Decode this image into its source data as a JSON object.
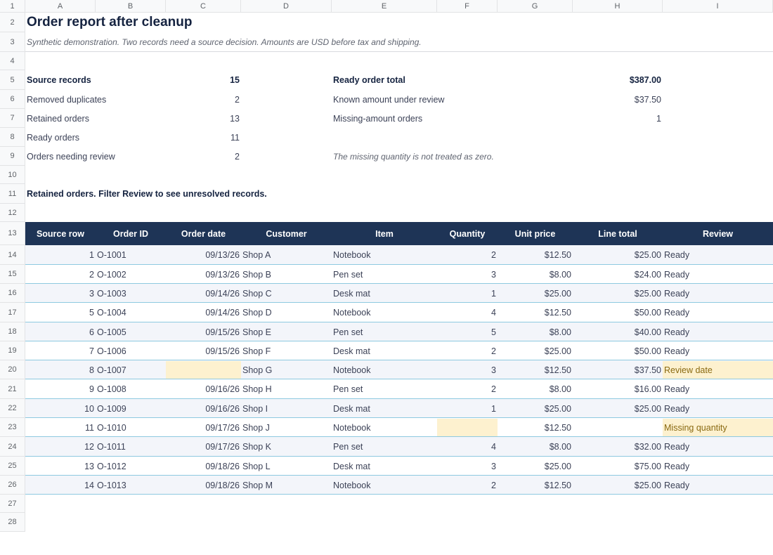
{
  "columns": [
    "A",
    "B",
    "C",
    "D",
    "E",
    "F",
    "G",
    "H",
    "I"
  ],
  "rows": [
    "1",
    "2",
    "3",
    "4",
    "5",
    "6",
    "7",
    "8",
    "9",
    "10",
    "11",
    "12",
    "13",
    "14",
    "15",
    "16",
    "17",
    "18",
    "19",
    "20",
    "21",
    "22",
    "23",
    "24",
    "25",
    "26",
    "27",
    "28"
  ],
  "title": "Order report after cleanup",
  "subtitle": "Synthetic demonstration. Two records need a source decision. Amounts are USD before tax and shipping.",
  "summary_left": [
    {
      "label": "Source records",
      "value": "15",
      "bold": true
    },
    {
      "label": "Removed duplicates",
      "value": "2",
      "bold": false
    },
    {
      "label": "Retained orders",
      "value": "13",
      "bold": false
    },
    {
      "label": "Ready orders",
      "value": "11",
      "bold": false
    },
    {
      "label": "Orders needing review",
      "value": "2",
      "bold": false
    }
  ],
  "summary_right": [
    {
      "label": "Ready order total",
      "value": "$387.00",
      "bold": true
    },
    {
      "label": "Known amount under review",
      "value": "$37.50",
      "bold": false
    },
    {
      "label": "Missing-amount orders",
      "value": "1",
      "bold": false
    }
  ],
  "note": "The missing quantity is not treated as zero.",
  "table_caption": "Retained orders. Filter Review to see unresolved records.",
  "table": {
    "headers": [
      "Source row",
      "Order ID",
      "Order date",
      "Customer",
      "Item",
      "Quantity",
      "Unit price",
      "Line total",
      "Review"
    ],
    "rows": [
      [
        "1",
        "O-1001",
        "09/13/26",
        "Shop A",
        "Notebook",
        "2",
        "$12.50",
        "$25.00",
        "Ready"
      ],
      [
        "2",
        "O-1002",
        "09/13/26",
        "Shop B",
        "Pen set",
        "3",
        "$8.00",
        "$24.00",
        "Ready"
      ],
      [
        "3",
        "O-1003",
        "09/14/26",
        "Shop C",
        "Desk mat",
        "1",
        "$25.00",
        "$25.00",
        "Ready"
      ],
      [
        "5",
        "O-1004",
        "09/14/26",
        "Shop D",
        "Notebook",
        "4",
        "$12.50",
        "$50.00",
        "Ready"
      ],
      [
        "6",
        "O-1005",
        "09/15/26",
        "Shop E",
        "Pen set",
        "5",
        "$8.00",
        "$40.00",
        "Ready"
      ],
      [
        "7",
        "O-1006",
        "09/15/26",
        "Shop F",
        "Desk mat",
        "2",
        "$25.00",
        "$50.00",
        "Ready"
      ],
      [
        "8",
        "O-1007",
        "",
        "Shop G",
        "Notebook",
        "3",
        "$12.50",
        "$37.50",
        "Review date"
      ],
      [
        "9",
        "O-1008",
        "09/16/26",
        "Shop H",
        "Pen set",
        "2",
        "$8.00",
        "$16.00",
        "Ready"
      ],
      [
        "10",
        "O-1009",
        "09/16/26",
        "Shop I",
        "Desk mat",
        "1",
        "$25.00",
        "$25.00",
        "Ready"
      ],
      [
        "11",
        "O-1010",
        "09/17/26",
        "Shop J",
        "Notebook",
        "",
        "$12.50",
        "",
        "Missing quantity"
      ],
      [
        "12",
        "O-1011",
        "09/17/26",
        "Shop K",
        "Pen set",
        "4",
        "$8.00",
        "$32.00",
        "Ready"
      ],
      [
        "13",
        "O-1012",
        "09/18/26",
        "Shop L",
        "Desk mat",
        "3",
        "$25.00",
        "$75.00",
        "Ready"
      ],
      [
        "14",
        "O-1013",
        "09/18/26",
        "Shop M",
        "Notebook",
        "2",
        "$12.50",
        "$25.00",
        "Ready"
      ]
    ]
  },
  "colors": {
    "header_bg": "#1e3456",
    "stripe": "#f3f5fa",
    "flag": "#fdf1cf",
    "border": "#8ec9e0"
  }
}
